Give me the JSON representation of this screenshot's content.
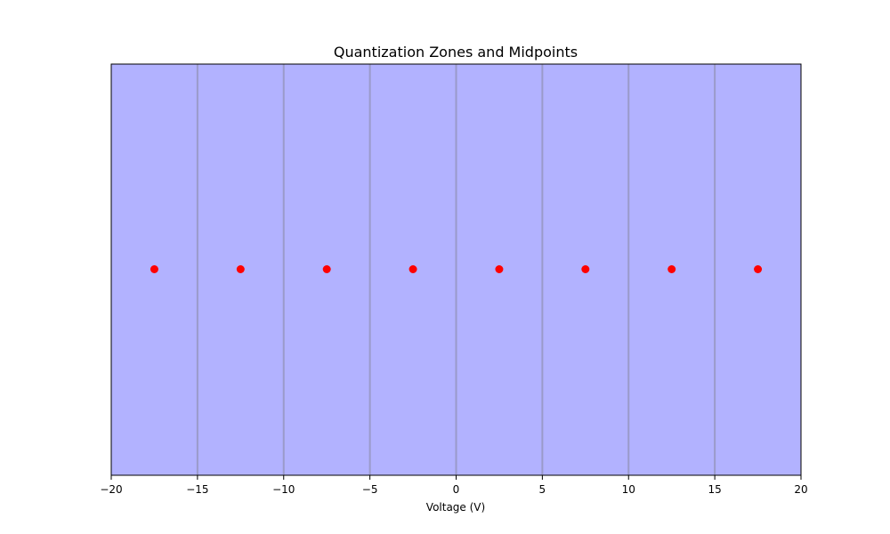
{
  "chart_data": {
    "type": "scatter",
    "title": "Quantization Zones and Midpoints",
    "xlabel": "Voltage (V)",
    "ylabel": "",
    "xlim": [
      -20,
      20
    ],
    "ylim": [
      -1,
      1
    ],
    "grid": false,
    "y_axis_visible": false,
    "zones": {
      "boundaries": [
        -20,
        -15,
        -10,
        -5,
        0,
        5,
        10,
        15,
        20
      ],
      "fill_color": "#b2b2ff",
      "boundary_color": "#9a9aca"
    },
    "series": [
      {
        "marker": "circle",
        "color": "#ff0000",
        "x": [
          -17.5,
          -12.5,
          -7.5,
          -2.5,
          2.5,
          7.5,
          12.5,
          17.5
        ],
        "y": [
          0,
          0,
          0,
          0,
          0,
          0,
          0,
          0
        ]
      }
    ],
    "xticks": [
      -20,
      -15,
      -10,
      -5,
      0,
      5,
      10,
      15,
      20
    ],
    "xtick_labels": [
      "−20",
      "−15",
      "−10",
      "−5",
      "0",
      "5",
      "10",
      "15",
      "20"
    ]
  }
}
